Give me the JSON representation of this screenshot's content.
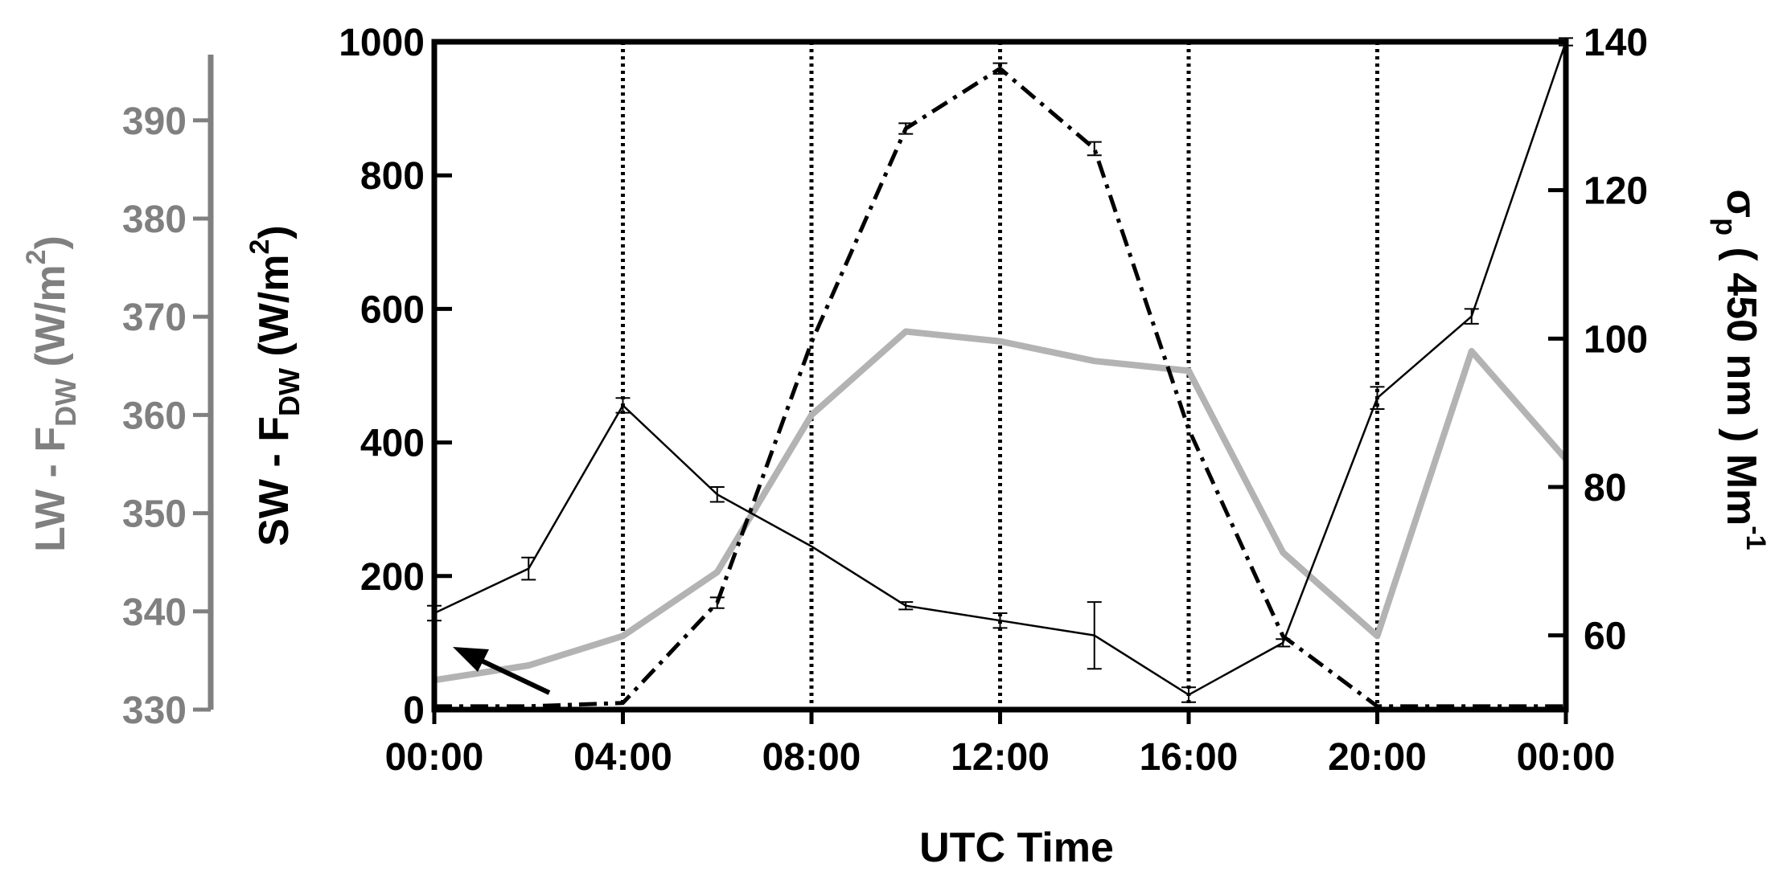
{
  "chart_data": {
    "type": "line",
    "xlabel": "UTC Time",
    "x_tick_labels": [
      "00:00",
      "04:00",
      "08:00",
      "12:00",
      "16:00",
      "20:00",
      "00:00"
    ],
    "x_range_hours": [
      0,
      24
    ],
    "axes": {
      "sw": {
        "label_main": "SW - F",
        "label_sub": "DW",
        "label_unit": " (W/m",
        "label_sup": "2",
        "label_close": ")",
        "range": [
          0,
          1000
        ],
        "ticks": [
          0,
          200,
          400,
          600,
          800,
          1000
        ],
        "color": "#000000"
      },
      "lw": {
        "label_main": "LW - F",
        "label_sub": "DW",
        "label_unit": " (W/m",
        "label_sup": "2",
        "label_close": ")",
        "range": [
          330,
          398
        ],
        "ticks": [
          330,
          340,
          350,
          360,
          370,
          380,
          390
        ],
        "color": "#808080"
      },
      "sigma": {
        "label_main": "σ",
        "label_sub": "p",
        "label_unit": " ( 450 nm ) Mm",
        "label_sup": "-1",
        "range": [
          50,
          140
        ],
        "ticks": [
          60,
          80,
          100,
          120,
          140
        ],
        "color": "#000000"
      }
    },
    "series": [
      {
        "axis": "sw",
        "style": "dash-dot",
        "color": "#000000",
        "x": [
          0,
          2,
          4,
          6,
          8,
          10,
          12,
          14,
          16,
          18,
          20,
          22,
          24
        ],
        "values": [
          5,
          5,
          10,
          160,
          550,
          870,
          960,
          840,
          420,
          110,
          5,
          5,
          5
        ],
        "errors": [
          0,
          0,
          0,
          8,
          0,
          8,
          8,
          10,
          0,
          0,
          0,
          0,
          0
        ]
      },
      {
        "axis": "lw",
        "style": "solid",
        "color": "#b3b3b3",
        "x": [
          0,
          2,
          4,
          6,
          8,
          10,
          12,
          14,
          16,
          18,
          20,
          22,
          24
        ],
        "values": [
          333,
          334.5,
          337.5,
          344,
          360,
          368.5,
          367.5,
          365.5,
          364.5,
          346,
          337.5,
          366.5,
          355.5
        ],
        "errors": [
          0,
          0,
          0,
          0,
          0,
          0,
          0,
          0,
          0,
          0,
          0,
          0,
          0
        ]
      },
      {
        "axis": "sigma",
        "style": "solid-thin",
        "color": "#000000",
        "x": [
          0,
          2,
          4,
          6,
          8,
          10,
          12,
          14,
          16,
          18,
          20,
          22,
          24
        ],
        "values": [
          63,
          69,
          91,
          79,
          72,
          64,
          62,
          60,
          52,
          59,
          92,
          103,
          140
        ],
        "errors": [
          1,
          1.5,
          1,
          1,
          0,
          0.5,
          1,
          4.5,
          1,
          0.5,
          1.5,
          1,
          0.5
        ]
      }
    ],
    "vertical_gridlines_hours": [
      0,
      4,
      8,
      12,
      16,
      20,
      24
    ],
    "annotation": {
      "type": "arrow",
      "pointing_to": "lw-series-start"
    }
  }
}
